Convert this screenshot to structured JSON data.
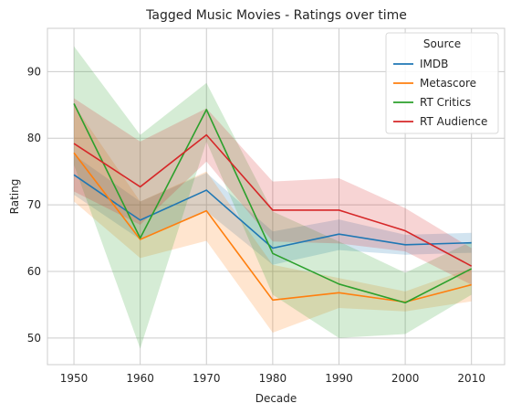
{
  "chart_data": {
    "type": "line",
    "title": "Tagged Music Movies - Ratings over time",
    "xlabel": "Decade",
    "ylabel": "Rating",
    "x": [
      1950,
      1960,
      1970,
      1980,
      1990,
      2000,
      2010
    ],
    "xticks": [
      1950,
      1960,
      1970,
      1980,
      1990,
      2000,
      2010
    ],
    "yticks": [
      50,
      60,
      70,
      80,
      90
    ],
    "xlim": [
      1946,
      2015
    ],
    "ylim": [
      46,
      96.5
    ],
    "grid": true,
    "legend": {
      "title": "Source",
      "placement": "top-right"
    },
    "series": [
      {
        "name": "IMDB",
        "color": "#1f77b4",
        "values": [
          74.5,
          67.7,
          72.2,
          63.5,
          65.6,
          64.0,
          64.3
        ],
        "lower": [
          71.5,
          64.8,
          69.0,
          61.0,
          63.2,
          62.5,
          62.8
        ],
        "upper": [
          77.5,
          70.5,
          74.8,
          66.0,
          67.8,
          65.5,
          65.8
        ]
      },
      {
        "name": "Metascore",
        "color": "#ff7f0e",
        "values": [
          77.8,
          64.8,
          69.1,
          55.7,
          56.8,
          55.4,
          58.0
        ],
        "lower": [
          70.5,
          62.0,
          64.6,
          50.8,
          54.5,
          54.0,
          55.5
        ],
        "upper": [
          85.0,
          70.5,
          75.0,
          61.0,
          59.0,
          57.0,
          60.5
        ]
      },
      {
        "name": "RT Critics",
        "color": "#2ca02c",
        "values": [
          85.2,
          65.0,
          84.3,
          62.7,
          58.1,
          55.3,
          60.4
        ],
        "lower": [
          76.0,
          48.4,
          79.5,
          56.5,
          50.0,
          50.6,
          56.5
        ],
        "upper": [
          93.8,
          80.5,
          88.3,
          69.0,
          64.5,
          59.8,
          64.5
        ]
      },
      {
        "name": "RT Audience",
        "color": "#d62728",
        "values": [
          79.2,
          72.7,
          80.5,
          69.2,
          69.2,
          66.1,
          60.8
        ],
        "lower": [
          72.0,
          67.0,
          76.5,
          64.5,
          64.2,
          63.0,
          58.0
        ],
        "upper": [
          86.0,
          79.5,
          84.5,
          73.5,
          74.0,
          69.5,
          63.5
        ]
      }
    ]
  }
}
